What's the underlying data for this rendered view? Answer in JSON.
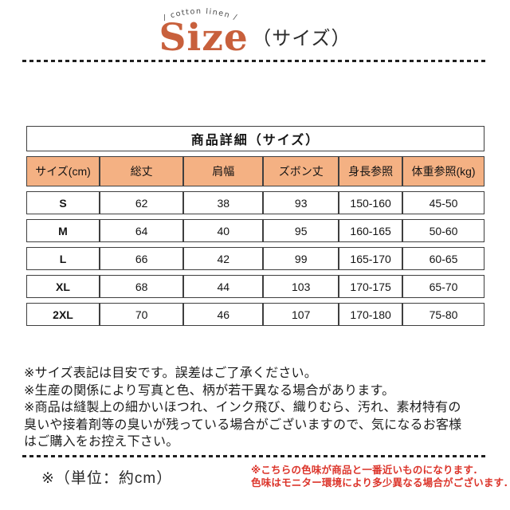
{
  "header": {
    "arc_text": "/ cotton linen /",
    "title": "Size",
    "subtitle": "（サイズ）"
  },
  "size_table": {
    "title": "商品詳細（サイズ）",
    "columns": [
      "サイズ(cm)",
      "総丈",
      "肩幅",
      "ズボン丈",
      "身長参照",
      "体重参照(kg)"
    ],
    "rows": [
      {
        "size": "S",
        "values": [
          "62",
          "38",
          "93",
          "150-160",
          "45-50"
        ]
      },
      {
        "size": "M",
        "values": [
          "64",
          "40",
          "95",
          "160-165",
          "50-60"
        ]
      },
      {
        "size": "L",
        "values": [
          "66",
          "42",
          "99",
          "165-170",
          "60-65"
        ]
      },
      {
        "size": "XL",
        "values": [
          "68",
          "44",
          "103",
          "170-175",
          "65-70"
        ]
      },
      {
        "size": "2XL",
        "values": [
          "70",
          "46",
          "107",
          "170-180",
          "75-80"
        ]
      }
    ]
  },
  "notes": {
    "lines": [
      "※サイズ表記は目安です。誤差はご了承ください。",
      "※生産の関係により写真と色、柄が若干異なる場合があります。",
      "※商品は縫製上の細かいほつれ、インク飛び、織りむら、汚れ、素材特有の",
      "臭いや接着剤等の臭いが残っている場合がございますので、気になるお客様",
      "はご購入をお控え下さい。"
    ]
  },
  "footer": {
    "unit_note": "※（単位：約cm）",
    "color_note_lines": [
      "※こちらの色味が商品と一番近いものになります．",
      "色味はモニター環境により多少異なる場合がございます．"
    ]
  },
  "colors": {
    "accent_orange": "#c8603c",
    "table_header_bg": "#f4b183",
    "table_border": "#3f3f3f",
    "warning_red": "#dc352b",
    "dash_line": "#1f1f1f"
  }
}
